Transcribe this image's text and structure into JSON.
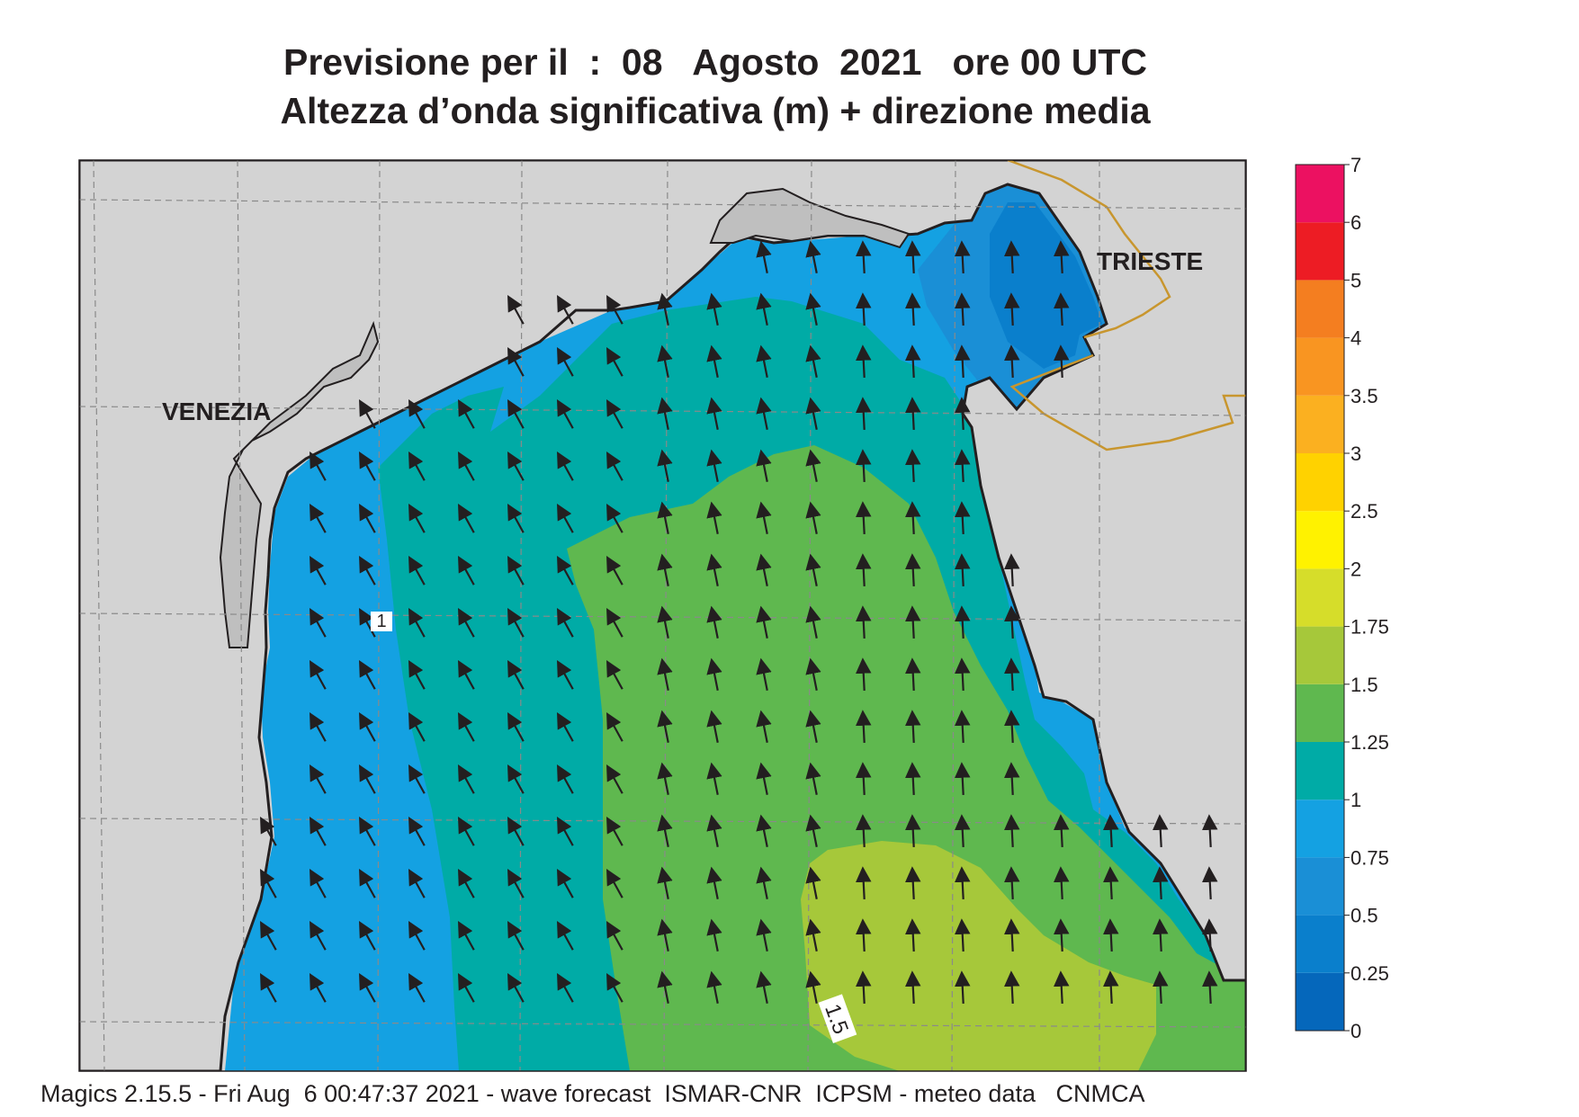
{
  "title": {
    "line1": "Previsione per il  :  08   Agosto  2021   ore 00 UTC",
    "line2": "Altezza d’onda significativa (m) + direzione media"
  },
  "cities": {
    "venezia": "VENEZIA",
    "trieste": "TRIESTE"
  },
  "contour_labels": {
    "one": "1",
    "one_five": "1.5"
  },
  "colorbar": {
    "levels": [
      "0",
      "0.25",
      "0.5",
      "0.75",
      "1",
      "1.25",
      "1.5",
      "1.75",
      "2",
      "2.5",
      "3",
      "3.5",
      "4",
      "5",
      "6",
      "7"
    ],
    "colors": [
      "#0567bb",
      "#0a7fcc",
      "#1a8fd6",
      "#14a1e2",
      "#00aba6",
      "#5fb84f",
      "#a6c83a",
      "#d6dd2a",
      "#fff200",
      "#ffd200",
      "#fbb020",
      "#f99521",
      "#f47e20",
      "#ed1c24",
      "#ec1161"
    ]
  },
  "land_color": "#d3d3d3",
  "footer": "Magics 2.15.5 - Fri Aug  6 00:47:37 2021 - wave forecast  ISMAR-CNR  ICPSM - meteo data   CNMCA"
}
